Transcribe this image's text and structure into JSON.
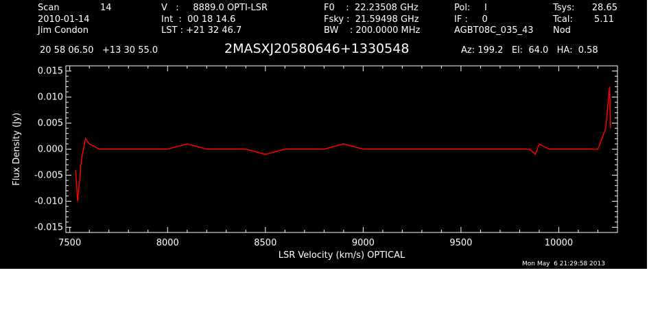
{
  "header": {
    "scan_label": "Scan",
    "scan_value": "14",
    "date": "2010-01-14",
    "observer": "Jim Condon",
    "velocity": "V   :     8889.0 OPTI-LSR",
    "integration": "Int  :  00 18 14.6",
    "lst": "LST : +21 32 46.7",
    "f0": "F0    :  22.23508 GHz",
    "fsky": "Fsky :  21.59498 GHz",
    "bw": "BW    : 200.0000 MHz",
    "pol": "Pol:     I",
    "if": "IF :     0",
    "project": "AGBT08C_035_43",
    "tsys_label": "Tsys:",
    "tsys_value": "28.65",
    "tcal_label": "Tcal:",
    "tcal_value": "5.11",
    "mode": "Nod",
    "coords": "20 58 06.50   +13 30 55.0",
    "source": "2MASXJ20580646+1330548",
    "pointing": "Az: 199.2   El:  64.0   HA:  0.58"
  },
  "footer": {
    "timestamp": "Mon May  6 21:29:58 2013"
  },
  "colors": {
    "background": "#000000",
    "foreground": "#ffffff",
    "series": "#ff0000"
  },
  "chart_data": {
    "type": "line",
    "xlabel": "LSR Velocity (km/s) OPTICAL",
    "ylabel": "Flux Density (Jy)",
    "xlim": [
      7480,
      10300
    ],
    "ylim": [
      -0.016,
      0.016
    ],
    "x_ticks": [
      7500,
      8000,
      8500,
      9000,
      9500,
      10000
    ],
    "y_ticks": [
      -0.015,
      -0.01,
      -0.005,
      0.0,
      0.005,
      0.01,
      0.015
    ],
    "y_tick_labels": [
      "-0.015",
      "-0.010",
      "-0.005",
      "0.000",
      "0.005",
      "0.010",
      "0.015"
    ],
    "grid": false,
    "series": [
      {
        "x": [
          7530,
          7540,
          7550,
          7560,
          7570,
          7580,
          7600,
          7650,
          7700,
          7800,
          7900,
          8000,
          8100,
          8200,
          8300,
          8400,
          8500,
          8600,
          8700,
          8800,
          8900,
          9000,
          9100,
          9200,
          9300,
          9400,
          9500,
          9600,
          9700,
          9800,
          9850,
          9880,
          9900,
          9950,
          10000,
          10050,
          10100,
          10150,
          10200,
          10220,
          10240,
          10250,
          10260,
          10265
        ],
        "y": [
          -0.004,
          -0.01,
          -0.006,
          -0.002,
          0.0,
          0.002,
          0.001,
          0.0,
          0.0,
          0.0,
          0.0,
          0.0,
          0.001,
          0.0,
          0.0,
          0.0,
          -0.001,
          0.0,
          0.0,
          0.0,
          0.001,
          0.0,
          0.0,
          0.0,
          0.0,
          0.0,
          0.0,
          0.0,
          0.0,
          0.0,
          0.0,
          -0.001,
          0.001,
          0.0,
          0.0,
          0.0,
          0.0,
          0.0,
          0.0,
          0.002,
          0.004,
          0.008,
          0.012,
          0.004
        ]
      }
    ]
  }
}
